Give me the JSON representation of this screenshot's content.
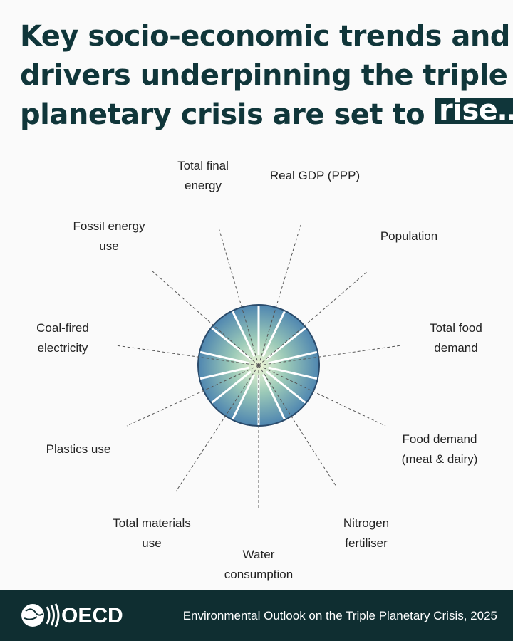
{
  "title": {
    "lines": [
      "Key socio-economic trends and",
      "drivers underpinning the triple",
      "planetary crisis are set to"
    ],
    "highlight": "rise…"
  },
  "labels": [
    [
      "Total final",
      "energy"
    ],
    [
      "Real GDP (PPP)"
    ],
    [
      "Population"
    ],
    [
      "Total food",
      "demand"
    ],
    [
      "Food demand",
      "(meat & dairy)"
    ],
    [
      "Nitrogen",
      "fertiliser"
    ],
    [
      "Water",
      "consumption"
    ],
    [
      "Total materials",
      "use"
    ],
    [
      "Plastics use"
    ],
    [
      "Coal-fired",
      "electricity"
    ],
    [
      "Fossil energy",
      "use"
    ]
  ],
  "footer": {
    "logo": "OECD",
    "source": "Environmental Outlook on the Triple Planetary Crisis, 2025"
  }
}
